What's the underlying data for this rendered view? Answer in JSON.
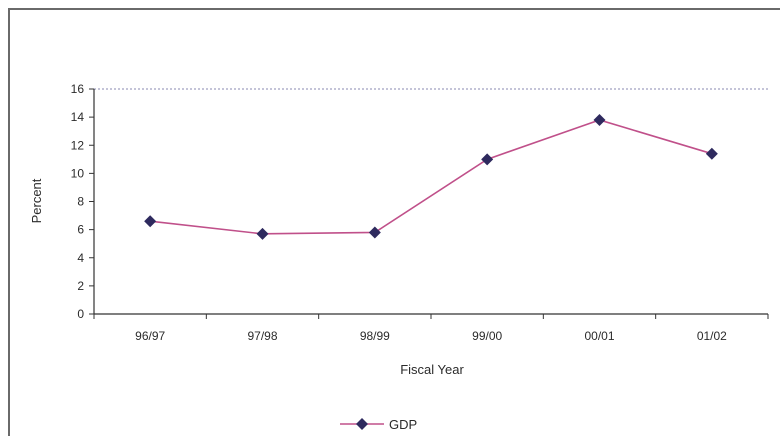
{
  "chart_data": {
    "type": "line",
    "title": "",
    "xlabel": "Fiscal Year",
    "ylabel": "Percent",
    "categories": [
      "96/97",
      "97/98",
      "98/99",
      "99/00",
      "00/01",
      "01/02"
    ],
    "series": [
      {
        "name": "GDP",
        "values": [
          6.6,
          5.7,
          5.8,
          11.0,
          13.8,
          11.4
        ],
        "line_color": "#c0508a",
        "marker_color": "#2e2a5e",
        "marker": "diamond"
      }
    ],
    "ylim": [
      0,
      16
    ],
    "yticks": [
      0,
      2,
      4,
      6,
      8,
      10,
      12,
      14,
      16
    ],
    "grid": false,
    "legend_position": "bottom-center",
    "plot_border": "dotted-top"
  }
}
